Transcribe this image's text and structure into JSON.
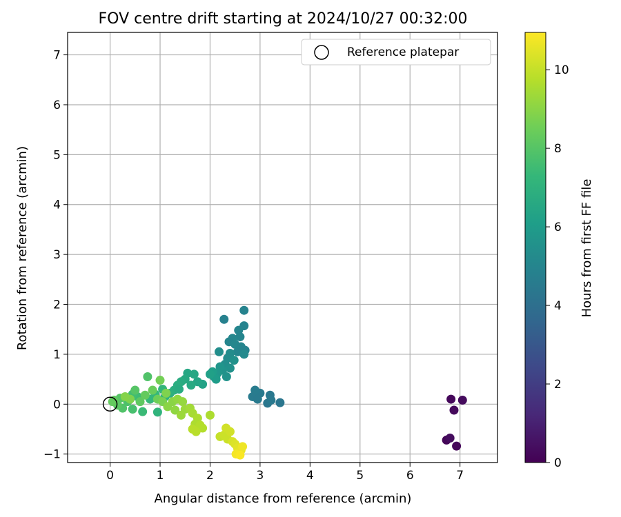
{
  "chart_data": {
    "type": "scatter",
    "title": "FOV centre drift starting at 2024/10/27 00:32:00",
    "xlabel": "Angular distance from reference (arcmin)",
    "ylabel": "Rotation from reference (arcmin)",
    "xlim": [
      -0.85,
      7.75
    ],
    "ylim": [
      -1.17,
      7.45
    ],
    "xticks": [
      0,
      1,
      2,
      3,
      4,
      5,
      6,
      7
    ],
    "yticks": [
      -1,
      0,
      1,
      2,
      3,
      4,
      5,
      6,
      7
    ],
    "grid": true,
    "legend": {
      "placement": "top-right",
      "entries": [
        "Reference platepar"
      ]
    },
    "reference_point": {
      "x": 0,
      "y": 0,
      "label": "Reference platepar"
    },
    "colorbar": {
      "label": "Hours from first FF file",
      "range": [
        0,
        10.95
      ],
      "ticks": [
        0,
        2,
        4,
        6,
        8,
        10
      ],
      "colormap": [
        "#440154",
        "#482878",
        "#3e4989",
        "#31688e",
        "#26828e",
        "#1f9e89",
        "#35b779",
        "#6ece58",
        "#b5de2b",
        "#fde725"
      ]
    },
    "series": [
      {
        "points": [
          {
            "x": 6.82,
            "y": 0.1,
            "h": 0.2
          },
          {
            "x": 7.05,
            "y": 0.08,
            "h": 0.3
          },
          {
            "x": 6.88,
            "y": -0.12,
            "h": 0.25
          },
          {
            "x": 6.73,
            "y": -0.72,
            "h": 0.15
          },
          {
            "x": 6.8,
            "y": -0.68,
            "h": 0.35
          },
          {
            "x": 6.93,
            "y": -0.84,
            "h": 0.2
          },
          {
            "x": 3.4,
            "y": 0.03,
            "h": 4.3
          },
          {
            "x": 3.2,
            "y": 0.18,
            "h": 4.4
          },
          {
            "x": 3.15,
            "y": 0.02,
            "h": 4.35
          },
          {
            "x": 3.0,
            "y": 0.22,
            "h": 4.5
          },
          {
            "x": 2.9,
            "y": 0.28,
            "h": 4.6
          },
          {
            "x": 2.85,
            "y": 0.15,
            "h": 4.55
          },
          {
            "x": 2.95,
            "y": 0.1,
            "h": 4.5
          },
          {
            "x": 3.22,
            "y": 0.08,
            "h": 4.45
          },
          {
            "x": 2.68,
            "y": 1.88,
            "h": 4.9
          },
          {
            "x": 2.28,
            "y": 1.7,
            "h": 4.8
          },
          {
            "x": 2.68,
            "y": 1.57,
            "h": 4.9
          },
          {
            "x": 2.57,
            "y": 1.48,
            "h": 5.0
          },
          {
            "x": 2.6,
            "y": 1.35,
            "h": 5.0
          },
          {
            "x": 2.45,
            "y": 1.32,
            "h": 5.1
          },
          {
            "x": 2.38,
            "y": 1.25,
            "h": 5.0
          },
          {
            "x": 2.5,
            "y": 1.2,
            "h": 5.1
          },
          {
            "x": 2.62,
            "y": 1.15,
            "h": 5.0
          },
          {
            "x": 2.7,
            "y": 1.08,
            "h": 4.9
          },
          {
            "x": 2.55,
            "y": 1.05,
            "h": 5.0
          },
          {
            "x": 2.68,
            "y": 1.0,
            "h": 5.2
          },
          {
            "x": 2.4,
            "y": 1.02,
            "h": 5.3
          },
          {
            "x": 2.35,
            "y": 0.92,
            "h": 5.3
          },
          {
            "x": 2.18,
            "y": 1.05,
            "h": 5.4
          },
          {
            "x": 2.48,
            "y": 0.88,
            "h": 5.5
          },
          {
            "x": 2.3,
            "y": 0.8,
            "h": 5.4
          },
          {
            "x": 2.4,
            "y": 0.72,
            "h": 5.5
          },
          {
            "x": 2.25,
            "y": 0.68,
            "h": 5.6
          },
          {
            "x": 2.2,
            "y": 0.75,
            "h": 5.7
          },
          {
            "x": 2.33,
            "y": 0.55,
            "h": 5.6
          },
          {
            "x": 2.15,
            "y": 0.62,
            "h": 5.8
          },
          {
            "x": 2.08,
            "y": 0.55,
            "h": 5.9
          },
          {
            "x": 2.12,
            "y": 0.5,
            "h": 6.0
          },
          {
            "x": 2.05,
            "y": 0.65,
            "h": 6.1
          },
          {
            "x": 2.0,
            "y": 0.6,
            "h": 6.2
          },
          {
            "x": 1.85,
            "y": 0.4,
            "h": 6.3
          },
          {
            "x": 1.75,
            "y": 0.45,
            "h": 6.4
          },
          {
            "x": 1.68,
            "y": 0.6,
            "h": 6.5
          },
          {
            "x": 1.55,
            "y": 0.62,
            "h": 6.5
          },
          {
            "x": 1.5,
            "y": 0.5,
            "h": 6.6
          },
          {
            "x": 1.62,
            "y": 0.38,
            "h": 6.6
          },
          {
            "x": 1.42,
            "y": 0.45,
            "h": 6.7
          },
          {
            "x": 1.35,
            "y": 0.38,
            "h": 6.8
          },
          {
            "x": 1.28,
            "y": 0.28,
            "h": 6.8
          },
          {
            "x": 1.38,
            "y": 0.3,
            "h": 6.7
          },
          {
            "x": 1.2,
            "y": 0.22,
            "h": 6.9
          },
          {
            "x": 1.1,
            "y": 0.15,
            "h": 7.0
          },
          {
            "x": 0.95,
            "y": -0.16,
            "h": 7.1
          },
          {
            "x": 1.05,
            "y": 0.3,
            "h": 7.2
          },
          {
            "x": 0.9,
            "y": 0.2,
            "h": 7.3
          },
          {
            "x": 0.8,
            "y": 0.1,
            "h": 7.3
          },
          {
            "x": 0.65,
            "y": -0.15,
            "h": 7.4
          },
          {
            "x": 0.55,
            "y": 0.15,
            "h": 7.5
          },
          {
            "x": 0.75,
            "y": 0.55,
            "h": 7.9
          },
          {
            "x": 0.45,
            "y": 0.2,
            "h": 7.6
          },
          {
            "x": 0.45,
            "y": -0.1,
            "h": 7.7
          },
          {
            "x": 0.35,
            "y": 0.05,
            "h": 7.8
          },
          {
            "x": 0.25,
            "y": -0.08,
            "h": 7.9
          },
          {
            "x": 0.2,
            "y": 0.12,
            "h": 8.0
          },
          {
            "x": 0.15,
            "y": -0.02,
            "h": 8.1
          },
          {
            "x": 0.08,
            "y": 0.08,
            "h": 8.2
          },
          {
            "x": 0.05,
            "y": 0.05,
            "h": 8.3
          },
          {
            "x": 0.5,
            "y": 0.28,
            "h": 8.0
          },
          {
            "x": 0.6,
            "y": 0.05,
            "h": 8.2
          },
          {
            "x": 0.7,
            "y": 0.18,
            "h": 8.3
          },
          {
            "x": 0.85,
            "y": 0.28,
            "h": 8.4
          },
          {
            "x": 0.95,
            "y": 0.1,
            "h": 8.5
          },
          {
            "x": 1.0,
            "y": 0.48,
            "h": 8.6
          },
          {
            "x": 1.05,
            "y": 0.05,
            "h": 8.7
          },
          {
            "x": 1.12,
            "y": 0.22,
            "h": 8.8
          },
          {
            "x": 0.4,
            "y": 0.1,
            "h": 8.8
          },
          {
            "x": 0.3,
            "y": 0.15,
            "h": 8.9
          },
          {
            "x": 1.15,
            "y": -0.05,
            "h": 9.0
          },
          {
            "x": 1.25,
            "y": 0.05,
            "h": 9.0
          },
          {
            "x": 1.3,
            "y": -0.12,
            "h": 9.1
          },
          {
            "x": 1.35,
            "y": 0.1,
            "h": 9.1
          },
          {
            "x": 1.45,
            "y": 0.05,
            "h": 9.2
          },
          {
            "x": 1.42,
            "y": -0.22,
            "h": 9.3
          },
          {
            "x": 1.5,
            "y": -0.1,
            "h": 9.3
          },
          {
            "x": 1.6,
            "y": -0.08,
            "h": 9.4
          },
          {
            "x": 1.65,
            "y": -0.18,
            "h": 9.5
          },
          {
            "x": 1.75,
            "y": -0.28,
            "h": 9.6
          },
          {
            "x": 1.7,
            "y": -0.4,
            "h": 9.6
          },
          {
            "x": 1.8,
            "y": -0.42,
            "h": 9.7
          },
          {
            "x": 1.85,
            "y": -0.48,
            "h": 9.7
          },
          {
            "x": 1.65,
            "y": -0.5,
            "h": 9.8
          },
          {
            "x": 1.72,
            "y": -0.55,
            "h": 9.8
          },
          {
            "x": 2.0,
            "y": -0.22,
            "h": 9.6
          },
          {
            "x": 2.2,
            "y": -0.65,
            "h": 10.0
          },
          {
            "x": 2.28,
            "y": -0.62,
            "h": 10.1
          },
          {
            "x": 2.35,
            "y": -0.7,
            "h": 10.1
          },
          {
            "x": 2.32,
            "y": -0.48,
            "h": 10.2
          },
          {
            "x": 2.4,
            "y": -0.55,
            "h": 10.2
          },
          {
            "x": 2.45,
            "y": -0.75,
            "h": 10.3
          },
          {
            "x": 2.5,
            "y": -0.8,
            "h": 10.4
          },
          {
            "x": 2.55,
            "y": -0.88,
            "h": 10.5
          },
          {
            "x": 2.62,
            "y": -0.92,
            "h": 10.6
          },
          {
            "x": 2.65,
            "y": -0.85,
            "h": 10.7
          },
          {
            "x": 2.52,
            "y": -1.0,
            "h": 10.8
          },
          {
            "x": 2.6,
            "y": -1.02,
            "h": 10.9
          }
        ]
      }
    ]
  }
}
